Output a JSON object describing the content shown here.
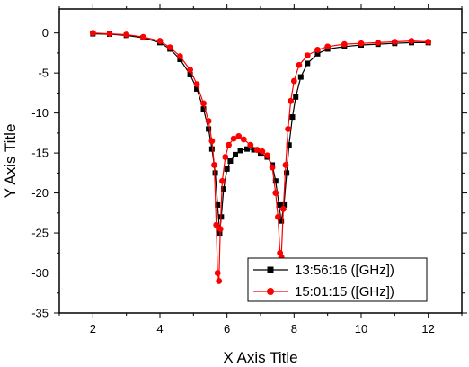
{
  "chart_data": {
    "type": "line",
    "title": "",
    "xlabel": "X Axis Title",
    "ylabel": "Y Axis Title",
    "xlim": [
      1,
      13
    ],
    "ylim": [
      -35,
      3
    ],
    "xticks": [
      2,
      4,
      6,
      8,
      10,
      12
    ],
    "yticks": [
      0,
      -5,
      -10,
      -15,
      -20,
      -25,
      -30,
      -35
    ],
    "grid": false,
    "legend_position": "bottom-right",
    "series": [
      {
        "name": "13:56:16 ([GHz])",
        "color": "#000000",
        "marker": "square",
        "points": [
          [
            2.0,
            -0.1
          ],
          [
            2.5,
            -0.15
          ],
          [
            3.0,
            -0.3
          ],
          [
            3.5,
            -0.6
          ],
          [
            4.0,
            -1.2
          ],
          [
            4.3,
            -2.0
          ],
          [
            4.6,
            -3.3
          ],
          [
            4.9,
            -5.2
          ],
          [
            5.1,
            -7.0
          ],
          [
            5.3,
            -9.5
          ],
          [
            5.45,
            -12.0
          ],
          [
            5.55,
            -14.5
          ],
          [
            5.65,
            -17.5
          ],
          [
            5.72,
            -21.5
          ],
          [
            5.78,
            -25.0
          ],
          [
            5.83,
            -23.0
          ],
          [
            5.9,
            -19.5
          ],
          [
            6.0,
            -17.0
          ],
          [
            6.1,
            -16.0
          ],
          [
            6.25,
            -15.2
          ],
          [
            6.4,
            -14.7
          ],
          [
            6.6,
            -14.5
          ],
          [
            6.8,
            -14.6
          ],
          [
            7.0,
            -15.0
          ],
          [
            7.2,
            -15.5
          ],
          [
            7.35,
            -16.5
          ],
          [
            7.45,
            -18.5
          ],
          [
            7.55,
            -21.5
          ],
          [
            7.62,
            -23.5
          ],
          [
            7.7,
            -21.5
          ],
          [
            7.78,
            -17.5
          ],
          [
            7.85,
            -14.0
          ],
          [
            7.95,
            -10.5
          ],
          [
            8.05,
            -8.0
          ],
          [
            8.2,
            -5.5
          ],
          [
            8.4,
            -3.8
          ],
          [
            8.7,
            -2.6
          ],
          [
            9.0,
            -2.0
          ],
          [
            9.5,
            -1.7
          ],
          [
            10.0,
            -1.5
          ],
          [
            10.5,
            -1.4
          ],
          [
            11.0,
            -1.3
          ],
          [
            11.5,
            -1.2
          ],
          [
            12.0,
            -1.2
          ]
        ]
      },
      {
        "name": "15:01:15 ([GHz])",
        "color": "#ff0000",
        "marker": "circle",
        "points": [
          [
            2.0,
            0.0
          ],
          [
            2.5,
            -0.1
          ],
          [
            3.0,
            -0.2
          ],
          [
            3.5,
            -0.5
          ],
          [
            4.0,
            -1.0
          ],
          [
            4.3,
            -1.8
          ],
          [
            4.6,
            -2.9
          ],
          [
            4.9,
            -4.6
          ],
          [
            5.1,
            -6.4
          ],
          [
            5.3,
            -8.8
          ],
          [
            5.45,
            -11.0
          ],
          [
            5.55,
            -13.5
          ],
          [
            5.62,
            -16.5
          ],
          [
            5.68,
            -24.0
          ],
          [
            5.72,
            -30.0
          ],
          [
            5.76,
            -31.0
          ],
          [
            5.8,
            -24.5
          ],
          [
            5.86,
            -18.5
          ],
          [
            5.95,
            -15.5
          ],
          [
            6.05,
            -14.0
          ],
          [
            6.2,
            -13.2
          ],
          [
            6.35,
            -12.9
          ],
          [
            6.5,
            -13.3
          ],
          [
            6.7,
            -14.0
          ],
          [
            6.9,
            -14.6
          ],
          [
            7.05,
            -14.8
          ],
          [
            7.2,
            -15.3
          ],
          [
            7.35,
            -16.8
          ],
          [
            7.45,
            -20.0
          ],
          [
            7.52,
            -23.0
          ],
          [
            7.58,
            -27.5
          ],
          [
            7.62,
            -28.0
          ],
          [
            7.68,
            -22.0
          ],
          [
            7.75,
            -16.5
          ],
          [
            7.82,
            -12.0
          ],
          [
            7.9,
            -8.5
          ],
          [
            8.0,
            -6.0
          ],
          [
            8.15,
            -4.0
          ],
          [
            8.4,
            -2.8
          ],
          [
            8.7,
            -2.1
          ],
          [
            9.0,
            -1.7
          ],
          [
            9.5,
            -1.4
          ],
          [
            10.0,
            -1.3
          ],
          [
            10.5,
            -1.2
          ],
          [
            11.0,
            -1.1
          ],
          [
            11.5,
            -1.0
          ],
          [
            12.0,
            -1.1
          ]
        ]
      }
    ]
  }
}
